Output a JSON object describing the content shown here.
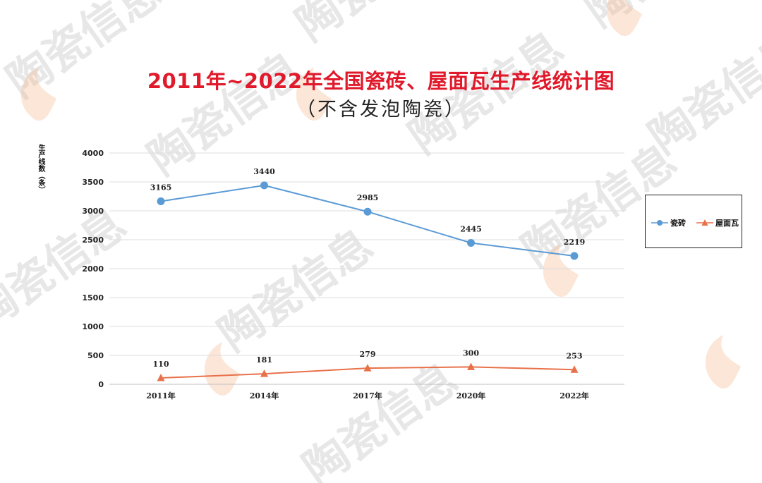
{
  "chart_data": {
    "type": "line",
    "title": "2011年~2022年全国瓷砖、屋面瓦生产线统计图",
    "subtitle": "（不含发泡陶瓷）",
    "ylabel": "生产线数（条）",
    "xlabel": "",
    "categories": [
      "2011年",
      "2014年",
      "2017年",
      "2020年",
      "2022年"
    ],
    "ylim": [
      0,
      4000
    ],
    "yticks": [
      0,
      500,
      1000,
      1500,
      2000,
      2500,
      3000,
      3500,
      4000
    ],
    "grid": true,
    "legend": "right",
    "series": [
      {
        "name": "瓷砖",
        "values": [
          3165,
          3440,
          2985,
          2445,
          2219
        ],
        "color": "#5b9bd5",
        "marker": "circle"
      },
      {
        "name": "屋面瓦",
        "values": [
          110,
          181,
          279,
          300,
          253
        ],
        "color": "#e8714a",
        "marker": "triangle"
      }
    ]
  },
  "watermark": {
    "text": "陶瓷信息",
    "logo_color": "#f4b88e"
  }
}
